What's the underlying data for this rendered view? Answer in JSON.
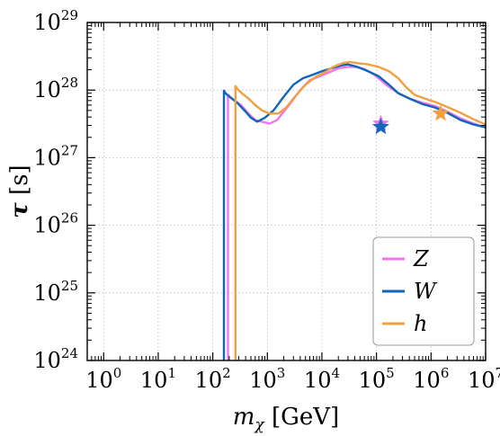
{
  "chart_data": {
    "type": "line",
    "xscale": "log",
    "yscale": "log",
    "xlim": [
      0.5,
      10000000
    ],
    "ylim": [
      1e+24,
      1e+29
    ],
    "grid": true,
    "legend_position": "bottom-right",
    "xlabel": {
      "main": "m",
      "sub": "χ",
      "unit": " [GeV]"
    },
    "ylabel": {
      "main": "τ",
      "unit": " [s]"
    },
    "x_ticks": [
      {
        "value": 1,
        "base": "10",
        "exp": "0"
      },
      {
        "value": 10,
        "base": "10",
        "exp": "1"
      },
      {
        "value": 100,
        "base": "10",
        "exp": "2"
      },
      {
        "value": 1000,
        "base": "10",
        "exp": "3"
      },
      {
        "value": 10000,
        "base": "10",
        "exp": "4"
      },
      {
        "value": 100000,
        "base": "10",
        "exp": "5"
      },
      {
        "value": 1000000,
        "base": "10",
        "exp": "6"
      },
      {
        "value": 10000000,
        "base": "10",
        "exp": "7"
      }
    ],
    "y_ticks": [
      {
        "value": 1e+24,
        "base": "10",
        "exp": "24"
      },
      {
        "value": 1e+25,
        "base": "10",
        "exp": "25"
      },
      {
        "value": 1e+26,
        "base": "10",
        "exp": "26"
      },
      {
        "value": 1e+27,
        "base": "10",
        "exp": "27"
      },
      {
        "value": 1e+28,
        "base": "10",
        "exp": "28"
      },
      {
        "value": 1e+29,
        "base": "10",
        "exp": "29"
      }
    ],
    "series": [
      {
        "name": "Z",
        "color": "#ee77ee",
        "x": [
          190,
          190,
          205,
          250,
          330,
          450,
          600,
          800,
          1100,
          1500,
          2500,
          4000,
          6000,
          9000,
          13000,
          20000,
          30000,
          40000,
          60000,
          90000,
          150000,
          250000,
          400000,
          700000,
          1200000,
          2000000,
          3500000,
          6000000,
          10000000
        ],
        "y": [
          1e+24,
          8.5e+27,
          8e+27,
          7e+27,
          6e+27,
          4.5e+27,
          3.6e+27,
          3.4e+27,
          3.2e+27,
          3.6e+27,
          6e+27,
          1e+28,
          1.4e+28,
          1.6e+28,
          1.8e+28,
          2.1e+28,
          2.2e+28,
          2.2e+28,
          2.05e+28,
          1.7e+28,
          1.2e+28,
          9e+27,
          7.5e+27,
          6.5e+27,
          5.8e+27,
          4.8e+27,
          3.8e+27,
          3.2e+27,
          2.8e+27
        ]
      },
      {
        "name": "W",
        "color": "#1166bb",
        "x": [
          160,
          160,
          175,
          210,
          280,
          380,
          500,
          650,
          900,
          1300,
          2000,
          3000,
          4500,
          7000,
          10000,
          15000,
          22000,
          30000,
          45000,
          70000,
          110000,
          170000,
          250000,
          400000,
          700000,
          1200000,
          2000000,
          3500000,
          6000000,
          10000000
        ],
        "y": [
          1e+24,
          9.8e+27,
          8.8e+27,
          7.8e+27,
          6.5e+27,
          5e+27,
          3.9e+27,
          3.4e+27,
          3.9e+27,
          5e+27,
          8e+27,
          1.2e+28,
          1.5e+28,
          1.7e+28,
          1.9e+28,
          2.1e+28,
          2.3e+28,
          2.4e+28,
          2.2e+28,
          1.9e+28,
          1.6e+28,
          1.2e+28,
          9e+27,
          7.5e+27,
          6.2e+27,
          5.5e+27,
          4.6e+27,
          3.6e+27,
          3.1e+27,
          2.8e+27
        ]
      },
      {
        "name": "h",
        "color": "#f0a040",
        "x": [
          260,
          260,
          280,
          340,
          450,
          600,
          800,
          1100,
          1600,
          2200,
          3200,
          5000,
          7500,
          11000,
          16000,
          24000,
          32000,
          45000,
          70000,
          110000,
          170000,
          250000,
          350000,
          500000,
          800000,
          1300000,
          2000000,
          3500000,
          6000000,
          10000000
        ],
        "y": [
          1e+24,
          1.15e+28,
          1.05e+28,
          9e+27,
          7.5e+27,
          6e+27,
          5e+27,
          4.5e+27,
          4.5e+27,
          5.5e+27,
          8e+27,
          1.2e+28,
          1.55e+28,
          1.8e+28,
          2.2e+28,
          2.5e+28,
          2.6e+28,
          2.5e+28,
          2.4e+28,
          2.2e+28,
          1.9e+28,
          1.5e+28,
          1.1e+28,
          8.5e+27,
          7.4e+27,
          6.5e+27,
          5.6e+27,
          4.6e+27,
          3.7e+27,
          3.1e+27
        ]
      }
    ],
    "markers": [
      {
        "series": "Z",
        "x": 120000,
        "y": 3.2e+27,
        "symbol": "star"
      },
      {
        "series": "W",
        "x": 120000,
        "y": 2.85e+27,
        "symbol": "star"
      },
      {
        "series": "h",
        "x": 1500000,
        "y": 4.5e+27,
        "symbol": "star"
      }
    ]
  }
}
